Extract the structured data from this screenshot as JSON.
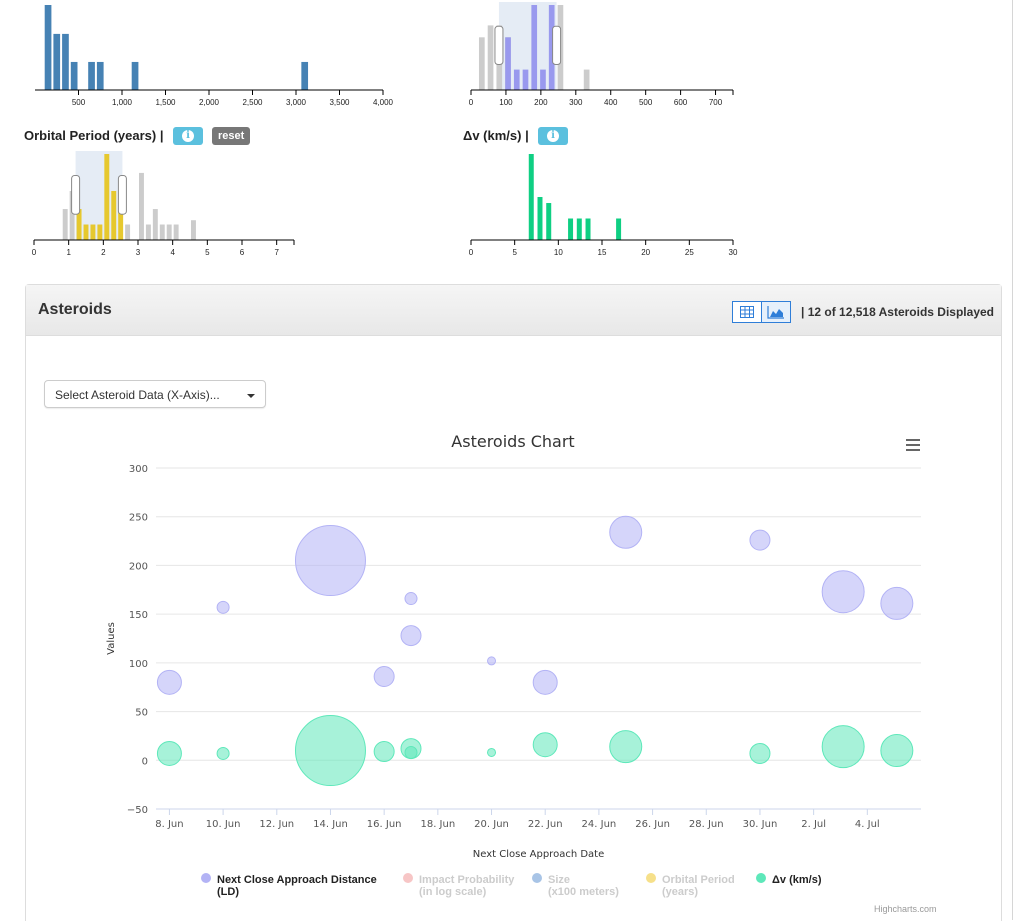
{
  "histograms": {
    "size": {
      "ticks": [
        "500",
        "1,000",
        "1,500",
        "2,000",
        "2,500",
        "3,000",
        "3,500",
        "4,000"
      ],
      "tick_values": [
        500,
        1000,
        1500,
        2000,
        2500,
        3000,
        3500,
        4000
      ],
      "xlim": [
        0,
        4000
      ],
      "bars": [
        [
          100,
          1.0
        ],
        [
          200,
          0.66
        ],
        [
          300,
          0.66
        ],
        [
          400,
          0.33
        ],
        [
          600,
          0.33
        ],
        [
          700,
          0.33
        ],
        [
          1100,
          0.33
        ],
        [
          3050,
          0.33
        ]
      ],
      "bar_width": 100
    },
    "impact": {
      "ticks": [
        "0",
        "100",
        "200",
        "300",
        "400",
        "500",
        "600",
        "700"
      ],
      "tick_values": [
        0,
        100,
        200,
        300,
        400,
        500,
        600,
        700
      ],
      "xlim": [
        0,
        750
      ],
      "bars_grey": [
        [
          20,
          0.62
        ],
        [
          45,
          0.76
        ],
        [
          70,
          0.76
        ],
        [
          95,
          0.62
        ],
        [
          245,
          1.0
        ],
        [
          320,
          0.24
        ]
      ],
      "bars_blue": [
        [
          95,
          0.62
        ],
        [
          120,
          0.24
        ],
        [
          145,
          0.24
        ],
        [
          170,
          1.0
        ],
        [
          195,
          0.24
        ],
        [
          220,
          1.0
        ]
      ],
      "bar_width": 22,
      "brush": [
        80,
        245
      ]
    },
    "orbital_period": {
      "title": "Orbital Period (years)  |",
      "reset_label": "reset",
      "ticks": [
        "0",
        "1",
        "2",
        "3",
        "4",
        "5",
        "6",
        "7"
      ],
      "tick_values": [
        0,
        1,
        2,
        3,
        4,
        5,
        6,
        7
      ],
      "xlim": [
        0,
        7.5
      ],
      "bars_grey": [
        [
          0.8,
          0.36
        ],
        [
          1.0,
          0.57
        ],
        [
          2.6,
          0.18
        ],
        [
          3.0,
          0.78
        ],
        [
          3.2,
          0.18
        ],
        [
          3.4,
          0.36
        ],
        [
          3.6,
          0.18
        ],
        [
          3.8,
          0.18
        ],
        [
          4.0,
          0.18
        ],
        [
          4.5,
          0.23
        ]
      ],
      "bars_yellow": [
        [
          1.2,
          0.36
        ],
        [
          1.4,
          0.18
        ],
        [
          1.6,
          0.18
        ],
        [
          1.8,
          0.18
        ],
        [
          2.0,
          1.0
        ],
        [
          2.2,
          0.57
        ],
        [
          2.4,
          0.57
        ]
      ],
      "bar_width": 0.2,
      "brush": [
        1.2,
        2.55
      ]
    },
    "delta_v": {
      "title": "Δv (km/s)  |",
      "ticks": [
        "0",
        "5",
        "10",
        "15",
        "20",
        "25",
        "30"
      ],
      "tick_values": [
        0,
        5,
        10,
        15,
        20,
        25,
        30
      ],
      "xlim": [
        0,
        30
      ],
      "bars": [
        [
          6.5,
          1.0
        ],
        [
          7.5,
          0.5
        ],
        [
          8.5,
          0.43
        ],
        [
          11.0,
          0.25
        ],
        [
          12.0,
          0.25
        ],
        [
          13.0,
          0.25
        ],
        [
          16.5,
          0.25
        ]
      ],
      "bar_width": 0.8
    }
  },
  "panel": {
    "title": "Asteroids",
    "displayed": "|  12 of 12,518 Asteroids Displayed",
    "dropdown_label": "Select Asteroid Data (X-Axis)..."
  },
  "chart_data": {
    "type": "scatter",
    "title": "Asteroids Chart",
    "xlabel": "Next Close Approach Date",
    "ylabel": "Values",
    "ylim": [
      -50,
      300
    ],
    "yticks": [
      "−50",
      "0",
      "50",
      "100",
      "150",
      "200",
      "250",
      "300"
    ],
    "ytick_values": [
      -50,
      0,
      50,
      100,
      150,
      200,
      250,
      300
    ],
    "xlim_days": [
      7.5,
      36
    ],
    "xticks": [
      "8. Jun",
      "10. Jun",
      "12. Jun",
      "14. Jun",
      "16. Jun",
      "18. Jun",
      "20. Jun",
      "22. Jun",
      "24. Jun",
      "26. Jun",
      "28. Jun",
      "30. Jun",
      "2. Jul",
      "4. Jul"
    ],
    "xtick_days": [
      8,
      10,
      12,
      14,
      16,
      18,
      20,
      22,
      24,
      26,
      28,
      30,
      32,
      34
    ],
    "grid": true,
    "legend": "bottom",
    "series": [
      {
        "name": "Next Close Approach Distance (LD)",
        "color": "#b3b3f5",
        "visible": true,
        "points": [
          {
            "x": "8. Jun",
            "day": 8,
            "y": 80,
            "r": 12
          },
          {
            "x": "10. Jun",
            "day": 10,
            "y": 157,
            "r": 6
          },
          {
            "x": "14. Jun",
            "day": 14,
            "y": 205,
            "r": 35
          },
          {
            "x": "16. Jun",
            "day": 16,
            "y": 86,
            "r": 10
          },
          {
            "x": "17. Jun",
            "day": 17,
            "y": 166,
            "r": 6
          },
          {
            "x": "17. Jun",
            "day": 17,
            "y": 128,
            "r": 10
          },
          {
            "x": "20. Jun",
            "day": 20,
            "y": 102,
            "r": 4
          },
          {
            "x": "22. Jun",
            "day": 22,
            "y": 80,
            "r": 12
          },
          {
            "x": "25. Jun",
            "day": 25,
            "y": 234,
            "r": 16
          },
          {
            "x": "30. Jun",
            "day": 30,
            "y": 226,
            "r": 10
          },
          {
            "x": "3. Jul",
            "day": 33.1,
            "y": 173,
            "r": 21
          },
          {
            "x": "5. Jul",
            "day": 35.1,
            "y": 161,
            "r": 16
          }
        ]
      },
      {
        "name": "Δv (km/s)",
        "color": "#5ee8ba",
        "visible": true,
        "points": [
          {
            "x": "8. Jun",
            "day": 8,
            "y": 7,
            "r": 12
          },
          {
            "x": "10. Jun",
            "day": 10,
            "y": 7,
            "r": 6
          },
          {
            "x": "14. Jun",
            "day": 14,
            "y": 10,
            "r": 35
          },
          {
            "x": "16. Jun",
            "day": 16,
            "y": 9,
            "r": 10
          },
          {
            "x": "17. Jun",
            "day": 17,
            "y": 12,
            "r": 10
          },
          {
            "x": "17. Jun",
            "day": 17,
            "y": 8,
            "r": 6
          },
          {
            "x": "20. Jun",
            "day": 20,
            "y": 8,
            "r": 4
          },
          {
            "x": "22. Jun",
            "day": 22,
            "y": 16,
            "r": 12
          },
          {
            "x": "25. Jun",
            "day": 25,
            "y": 14,
            "r": 16
          },
          {
            "x": "30. Jun",
            "day": 30,
            "y": 7,
            "r": 10
          },
          {
            "x": "3. Jul",
            "day": 33.1,
            "y": 14,
            "r": 21
          },
          {
            "x": "5. Jul",
            "day": 35.1,
            "y": 10,
            "r": 16
          }
        ]
      }
    ],
    "legend_items": [
      {
        "label": "Next Close Approach Distance\n(LD)",
        "color": "#b3b3f5",
        "active": true
      },
      {
        "label": "Impact Probability\n(in log scale)",
        "color": "#f7c6c6",
        "active": false
      },
      {
        "label": "Size\n(x100 meters)",
        "color": "#a8c4e6",
        "active": false
      },
      {
        "label": "Orbital Period\n(years)",
        "color": "#f6e08a",
        "active": false
      },
      {
        "label": "Δv (km/s)",
        "color": "#5ee8ba",
        "active": true
      }
    ],
    "credits": "Highcharts.com"
  },
  "colors": {
    "size_bar": "#4682b4",
    "grey_bar": "#cccccc",
    "impact_bar": "#9999ee",
    "orbital_bar": "#e6c82e",
    "dv_bar": "#0fcf83",
    "brush": "#e5ecf5"
  }
}
